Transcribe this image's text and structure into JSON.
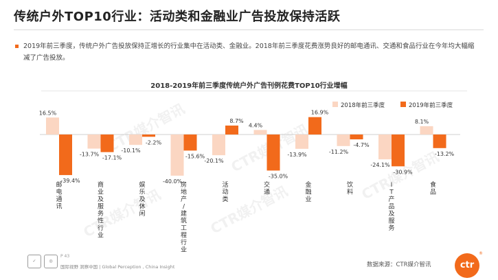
{
  "header": {
    "title": "传统户外TOP10行业：活动类和金融业广告投放保持活跃"
  },
  "summary": {
    "text": "2019年前三季度，传统户外广告投放保持正增长的行业集中在活动类、金融业。2018年前三季度花费涨势良好的邮电通讯、交通和食品行业在今年均大幅缩减了广告投放。"
  },
  "watermark": {
    "text": "CTR媒介智讯"
  },
  "chart_data": {
    "type": "bar",
    "title": "2018-2019年前三季度传统户外广告刊例花费TOP10行业增幅",
    "categories": [
      "邮电通讯",
      "商业及服务性行业",
      "娱乐及休闲",
      "房地产/建筑工程行业",
      "活动类",
      "交通",
      "金融业",
      "饮料",
      "IT产品及服务",
      "食品"
    ],
    "series": [
      {
        "name": "2018年前三季度",
        "color": "#fbd6c2",
        "values": [
          16.5,
          -13.7,
          -10.1,
          -40.0,
          -20.1,
          4.4,
          -13.9,
          -11.2,
          -24.1,
          8.1
        ]
      },
      {
        "name": "2019年前三季度",
        "color": "#f26a1b",
        "values": [
          -39.4,
          -17.1,
          -2.2,
          -15.6,
          8.7,
          -35.0,
          16.9,
          -4.7,
          -30.9,
          -13.2
        ]
      }
    ],
    "value_suffix": "%",
    "ylim": [
      -45,
      20
    ],
    "legend_position": "top-right",
    "grid": false
  },
  "footer": {
    "page": "P 43",
    "tagline": "国际视野  洞察中国  |  Global Perception , China Insight",
    "source": "数据来源：CTR媒介智讯",
    "logo_text": "ctr",
    "logo_mark": "®"
  }
}
